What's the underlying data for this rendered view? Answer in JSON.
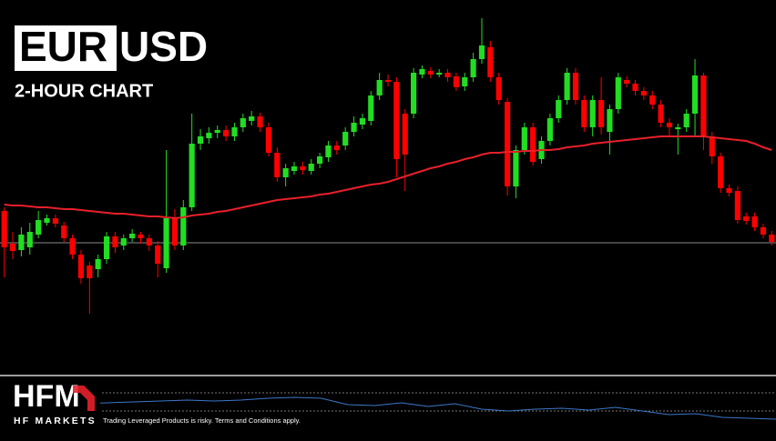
{
  "chart_data": {
    "type": "candlestick",
    "title_base": "EUR",
    "title_quote": "USD",
    "subtitle": "2-HOUR CHART",
    "up_color": "#22dd22",
    "down_color": "#ff0000",
    "ylim": [
      0,
      410
    ],
    "open": [
      178,
      142,
      135,
      138,
      152,
      165,
      170,
      162,
      148,
      130,
      118,
      114,
      125,
      150,
      140,
      148,
      152,
      148,
      140,
      115,
      170,
      140,
      182,
      252,
      258,
      264,
      267,
      260,
      270,
      277,
      282,
      270,
      242,
      215,
      222,
      227,
      222,
      230,
      237,
      250,
      250,
      265,
      273,
      277,
      305,
      322,
      320,
      285,
      285,
      328,
      332,
      328,
      330,
      326,
      315,
      325,
      345,
      358,
      325,
      298,
      205,
      245,
      270,
      235,
      255,
      280,
      300,
      330,
      300,
      270,
      300,
      265,
      290,
      322,
      318,
      310,
      305,
      295,
      275,
      268,
      270,
      285,
      327,
      260,
      238,
      203,
      200,
      172,
      172,
      160,
      152
    ],
    "high": [
      182,
      155,
      160,
      165,
      178,
      174,
      174,
      166,
      152,
      135,
      122,
      130,
      155,
      155,
      152,
      158,
      155,
      152,
      145,
      245,
      180,
      190,
      285,
      268,
      270,
      272,
      272,
      275,
      285,
      288,
      286,
      275,
      248,
      230,
      232,
      232,
      235,
      242,
      255,
      255,
      270,
      282,
      285,
      310,
      330,
      328,
      325,
      290,
      335,
      338,
      336,
      334,
      334,
      330,
      330,
      352,
      390,
      365,
      330,
      302,
      250,
      275,
      275,
      260,
      285,
      305,
      335,
      335,
      305,
      305,
      325,
      295,
      330,
      326,
      322,
      314,
      310,
      300,
      280,
      274,
      290,
      345,
      330,
      265,
      242,
      207,
      205,
      176,
      176,
      164,
      156
    ],
    "low": [
      105,
      125,
      128,
      130,
      148,
      162,
      160,
      144,
      125,
      98,
      65,
      105,
      120,
      132,
      135,
      144,
      142,
      134,
      105,
      110,
      135,
      135,
      178,
      245,
      252,
      258,
      255,
      255,
      265,
      272,
      265,
      238,
      210,
      205,
      218,
      218,
      218,
      225,
      232,
      240,
      245,
      260,
      268,
      272,
      300,
      315,
      215,
      200,
      280,
      324,
      324,
      325,
      320,
      310,
      310,
      320,
      340,
      320,
      295,
      195,
      192,
      240,
      228,
      230,
      250,
      275,
      295,
      295,
      265,
      260,
      262,
      240,
      285,
      314,
      305,
      300,
      290,
      270,
      260,
      240,
      265,
      260,
      245,
      230,
      198,
      194,
      164,
      163,
      156,
      148,
      140
    ],
    "close": [
      138,
      134,
      152,
      155,
      168,
      170,
      164,
      148,
      130,
      104,
      104,
      125,
      150,
      138,
      148,
      153,
      148,
      140,
      120,
      170,
      140,
      182,
      252,
      260,
      264,
      267,
      260,
      270,
      280,
      282,
      270,
      242,
      215,
      225,
      227,
      223,
      230,
      238,
      250,
      245,
      265,
      275,
      280,
      305,
      322,
      320,
      235,
      240,
      330,
      334,
      328,
      330,
      325,
      314,
      325,
      345,
      360,
      325,
      300,
      205,
      245,
      270,
      232,
      255,
      280,
      300,
      330,
      300,
      270,
      300,
      270,
      290,
      325,
      318,
      310,
      305,
      295,
      275,
      270,
      270,
      285,
      327,
      260,
      238,
      203,
      198,
      168,
      167,
      160,
      152,
      144
    ],
    "moving_average": {
      "color": "#e8202a",
      "values": [
        185,
        184,
        184,
        183,
        182,
        182,
        181,
        180,
        180,
        179,
        178,
        177,
        176,
        175,
        175,
        174,
        173,
        172,
        172,
        171,
        170,
        171,
        173,
        174,
        175,
        177,
        178,
        180,
        182,
        184,
        186,
        188,
        190,
        191,
        192,
        193,
        194,
        196,
        197,
        199,
        201,
        203,
        205,
        207,
        208,
        210,
        213,
        216,
        219,
        222,
        225,
        227,
        230,
        232,
        235,
        237,
        240,
        242,
        242,
        243,
        243,
        244,
        244,
        245,
        245,
        246,
        248,
        249,
        250,
        252,
        253,
        254,
        255,
        256,
        257,
        258,
        259,
        260,
        260,
        260,
        260,
        260,
        260,
        259,
        258,
        257,
        256,
        255,
        252,
        248,
        245
      ]
    },
    "price_line": {
      "value": 143,
      "color": "#8a8a8a"
    },
    "indicator": {
      "color": "#3a78c8",
      "ylim": [
        0,
        45
      ],
      "values": [
        23,
        24,
        25,
        26,
        27,
        28,
        29,
        30,
        29,
        30,
        32,
        33,
        32,
        25,
        24,
        27,
        23,
        26,
        20,
        18,
        20,
        21,
        19,
        22,
        18,
        14,
        15,
        11,
        10,
        9
      ]
    }
  },
  "footer": {
    "logo": "HFM",
    "brand": "HF MARKETS",
    "disclaimer": "Trading Leveraged Products is risky. Terms and Conditions apply."
  }
}
